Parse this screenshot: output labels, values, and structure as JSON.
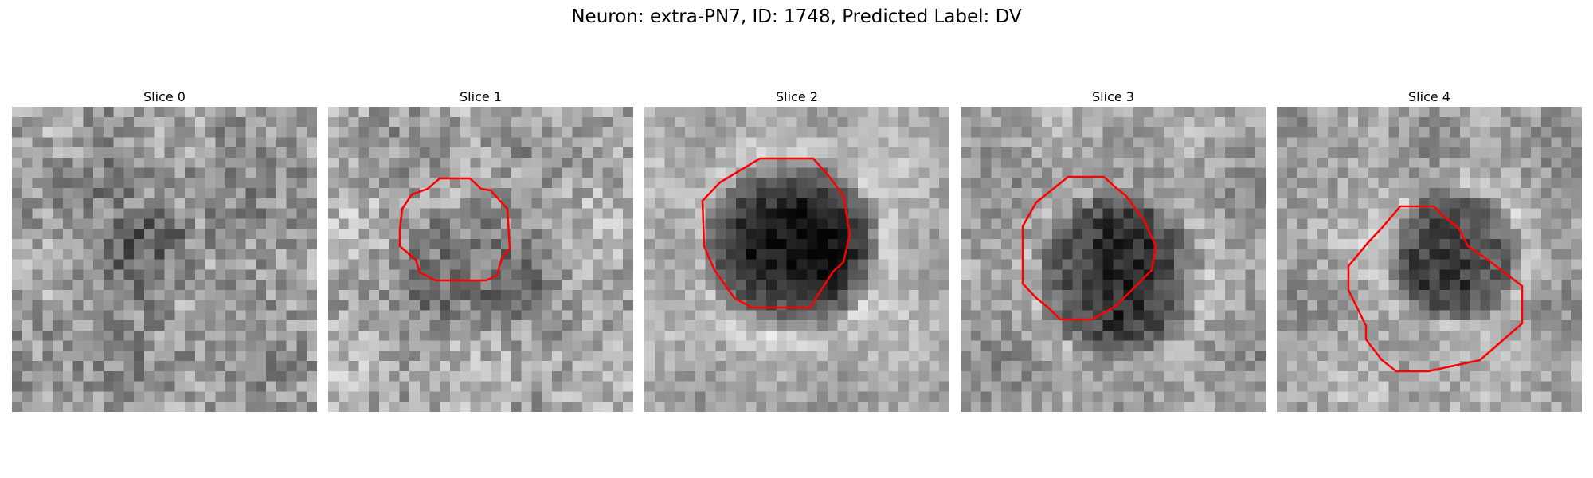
{
  "figure": {
    "title": "Neuron: extra-PN7, ID: 1748, Predicted Label: DV"
  },
  "contour_color": "#ff0000",
  "slices": [
    {
      "label": "Slice 0",
      "has_contour": false,
      "cell": "light-diffuse"
    },
    {
      "label": "Slice 1",
      "has_contour": true,
      "cell": "mid"
    },
    {
      "label": "Slice 2",
      "has_contour": true,
      "cell": "dark-large"
    },
    {
      "label": "Slice 3",
      "has_contour": true,
      "cell": "dark"
    },
    {
      "label": "Slice 4",
      "has_contour": true,
      "cell": "dark-top"
    }
  ]
}
